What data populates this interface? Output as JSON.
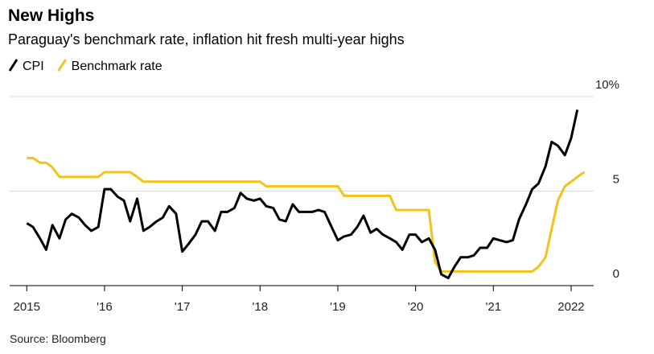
{
  "chart_data": {
    "type": "line",
    "title": "New Highs",
    "subtitle": "Paraguay's benchmark rate, inflation hit fresh multi-year highs",
    "source": "Source: Bloomberg",
    "xlim": [
      2014.78,
      2022.29
    ],
    "xticks": [
      2015,
      {
        "value": 2016,
        "label": "'16"
      },
      {
        "value": 2017,
        "label": "'17"
      },
      {
        "value": 2018,
        "label": "'18"
      },
      {
        "value": 2019,
        "label": "'19"
      },
      {
        "value": 2020,
        "label": "'20"
      },
      {
        "value": 2021,
        "label": "'21"
      },
      2022
    ],
    "ylim": [
      0,
      10
    ],
    "yticks": [
      0,
      5,
      {
        "value": 10,
        "label": "10%"
      }
    ],
    "grid": true,
    "series": [
      {
        "name": "CPI",
        "color": "#000000",
        "x": [
          2015,
          2015.08,
          2015.17,
          2015.25,
          2015.33,
          2015.42,
          2015.5,
          2015.58,
          2015.67,
          2015.75,
          2015.83,
          2015.92,
          2016,
          2016.08,
          2016.17,
          2016.25,
          2016.33,
          2016.42,
          2016.5,
          2016.58,
          2016.67,
          2016.75,
          2016.83,
          2016.92,
          2017,
          2017.08,
          2017.17,
          2017.25,
          2017.33,
          2017.42,
          2017.5,
          2017.58,
          2017.67,
          2017.75,
          2017.83,
          2017.92,
          2018,
          2018.08,
          2018.17,
          2018.25,
          2018.33,
          2018.42,
          2018.5,
          2018.58,
          2018.67,
          2018.75,
          2018.83,
          2018.92,
          2019,
          2019.08,
          2019.17,
          2019.25,
          2019.33,
          2019.42,
          2019.5,
          2019.58,
          2019.67,
          2019.75,
          2019.83,
          2019.92,
          2020,
          2020.08,
          2020.17,
          2020.25,
          2020.33,
          2020.42,
          2020.5,
          2020.58,
          2020.67,
          2020.75,
          2020.83,
          2020.92,
          2021,
          2021.08,
          2021.17,
          2021.25,
          2021.33,
          2021.42,
          2021.5,
          2021.58,
          2021.67,
          2021.75,
          2021.83,
          2021.92,
          2022,
          2022.08
        ],
        "values": [
          3.3,
          3.1,
          2.5,
          1.9,
          3.2,
          2.5,
          3.5,
          3.8,
          3.6,
          3.2,
          2.9,
          3.1,
          5.1,
          5.1,
          4.7,
          4.5,
          3.4,
          4.6,
          2.9,
          3.1,
          3.4,
          3.6,
          4.2,
          3.8,
          1.8,
          2.2,
          2.7,
          3.4,
          3.4,
          2.9,
          3.9,
          3.9,
          4.1,
          4.9,
          4.6,
          4.5,
          4.6,
          4.2,
          4.1,
          3.5,
          3.4,
          4.3,
          3.9,
          3.9,
          3.9,
          4.0,
          3.9,
          3.1,
          2.4,
          2.6,
          2.7,
          3.1,
          3.7,
          2.8,
          3.0,
          2.7,
          2.5,
          2.3,
          1.9,
          2.7,
          2.7,
          2.3,
          2.5,
          1.9,
          0.6,
          0.4,
          1.0,
          1.5,
          1.5,
          1.6,
          2.0,
          2.0,
          2.5,
          2.4,
          2.3,
          2.4,
          3.5,
          4.3,
          5.1,
          5.4,
          6.3,
          7.6,
          7.4,
          6.9,
          7.8,
          9.3
        ]
      },
      {
        "name": "Benchmark rate",
        "color": "#f2c318",
        "x": [
          2015,
          2015.08,
          2015.17,
          2015.25,
          2015.33,
          2015.42,
          2015.5,
          2015.58,
          2015.67,
          2015.75,
          2015.83,
          2015.92,
          2016,
          2016.08,
          2016.17,
          2016.25,
          2016.33,
          2016.42,
          2016.5,
          2016.58,
          2016.67,
          2016.75,
          2016.83,
          2016.92,
          2017,
          2017.08,
          2017.17,
          2017.25,
          2017.33,
          2017.42,
          2017.5,
          2017.58,
          2017.67,
          2017.75,
          2017.83,
          2017.92,
          2018,
          2018.08,
          2018.17,
          2018.25,
          2018.33,
          2018.42,
          2018.5,
          2018.58,
          2018.67,
          2018.75,
          2018.83,
          2018.92,
          2019,
          2019.08,
          2019.17,
          2019.25,
          2019.33,
          2019.42,
          2019.5,
          2019.58,
          2019.67,
          2019.75,
          2019.83,
          2019.92,
          2020,
          2020.08,
          2020.17,
          2020.25,
          2020.33,
          2020.42,
          2020.5,
          2020.58,
          2020.67,
          2020.75,
          2020.83,
          2020.92,
          2021,
          2021.08,
          2021.17,
          2021.25,
          2021.33,
          2021.42,
          2021.5,
          2021.58,
          2021.67,
          2021.75,
          2021.83,
          2021.92,
          2022,
          2022.08,
          2022.17
        ],
        "values": [
          6.75,
          6.75,
          6.5,
          6.5,
          6.25,
          5.75,
          5.75,
          5.75,
          5.75,
          5.75,
          5.75,
          5.75,
          6.0,
          6.0,
          6.0,
          6.0,
          6.0,
          5.75,
          5.5,
          5.5,
          5.5,
          5.5,
          5.5,
          5.5,
          5.5,
          5.5,
          5.5,
          5.5,
          5.5,
          5.5,
          5.5,
          5.5,
          5.5,
          5.5,
          5.5,
          5.5,
          5.5,
          5.25,
          5.25,
          5.25,
          5.25,
          5.25,
          5.25,
          5.25,
          5.25,
          5.25,
          5.25,
          5.25,
          5.25,
          4.75,
          4.75,
          4.75,
          4.75,
          4.75,
          4.75,
          4.75,
          4.75,
          4.0,
          4.0,
          4.0,
          4.0,
          4.0,
          4.0,
          1.25,
          0.75,
          0.75,
          0.75,
          0.75,
          0.75,
          0.75,
          0.75,
          0.75,
          0.75,
          0.75,
          0.75,
          0.75,
          0.75,
          0.75,
          0.75,
          1.0,
          1.5,
          3.0,
          4.5,
          5.25,
          5.5,
          5.75,
          6.0
        ]
      }
    ]
  }
}
